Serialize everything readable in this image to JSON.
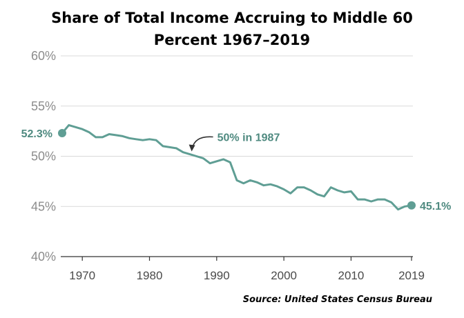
{
  "title_line1": "Share of Total Income Accruing to Middle 60",
  "title_line2": "Percent 1967–2019",
  "source": "Source: United States Census Bureau",
  "colors": {
    "line": "#5f9e94",
    "annotation": "#4f8a80",
    "grid": "#d9d9d9",
    "axis": "#333333"
  },
  "chart_data": {
    "type": "line",
    "title": "Share of Total Income Accruing to Middle 60 Percent 1967–2019",
    "xlabel": "",
    "ylabel": "",
    "xlim": [
      1967,
      2019
    ],
    "ylim": [
      40,
      60
    ],
    "y_ticks": [
      40,
      45,
      50,
      55,
      60
    ],
    "y_tick_labels": [
      "40%",
      "45%",
      "50%",
      "55%",
      "60%"
    ],
    "x_ticks": [
      1970,
      1980,
      1990,
      2000,
      2010,
      2019
    ],
    "x_tick_labels": [
      "1970",
      "1980",
      "1990",
      "2000",
      "2010",
      "2019"
    ],
    "grid": "horizontal",
    "series": [
      {
        "x": [
          1967,
          1968,
          1969,
          1970,
          1971,
          1972,
          1973,
          1974,
          1975,
          1976,
          1977,
          1978,
          1979,
          1980,
          1981,
          1982,
          1983,
          1984,
          1985,
          1986,
          1987,
          1988,
          1989,
          1990,
          1991,
          1992,
          1993,
          1994,
          1995,
          1996,
          1997,
          1998,
          1999,
          2000,
          2001,
          2002,
          2003,
          2004,
          2005,
          2006,
          2007,
          2008,
          2009,
          2010,
          2011,
          2012,
          2013,
          2014,
          2015,
          2016,
          2017,
          2018,
          2019
        ],
        "y": [
          52.3,
          53.1,
          52.9,
          52.7,
          52.4,
          51.9,
          51.9,
          52.2,
          52.1,
          52.0,
          51.8,
          51.7,
          51.6,
          51.7,
          51.6,
          51.0,
          50.9,
          50.8,
          50.4,
          50.2,
          50.0,
          49.8,
          49.3,
          49.5,
          49.7,
          49.4,
          47.6,
          47.3,
          47.6,
          47.4,
          47.1,
          47.2,
          47.0,
          46.7,
          46.3,
          46.9,
          46.9,
          46.6,
          46.2,
          46.0,
          46.9,
          46.6,
          46.4,
          46.5,
          45.7,
          45.7,
          45.5,
          45.7,
          45.7,
          45.4,
          44.7,
          45.0,
          45.1
        ]
      }
    ],
    "annotations": [
      {
        "text": "52.3%",
        "x": 1967,
        "y": 52.3
      },
      {
        "text": "50% in 1987",
        "x": 1987,
        "y": 50.0
      },
      {
        "text": "45.1%",
        "x": 2019,
        "y": 45.1
      }
    ]
  }
}
